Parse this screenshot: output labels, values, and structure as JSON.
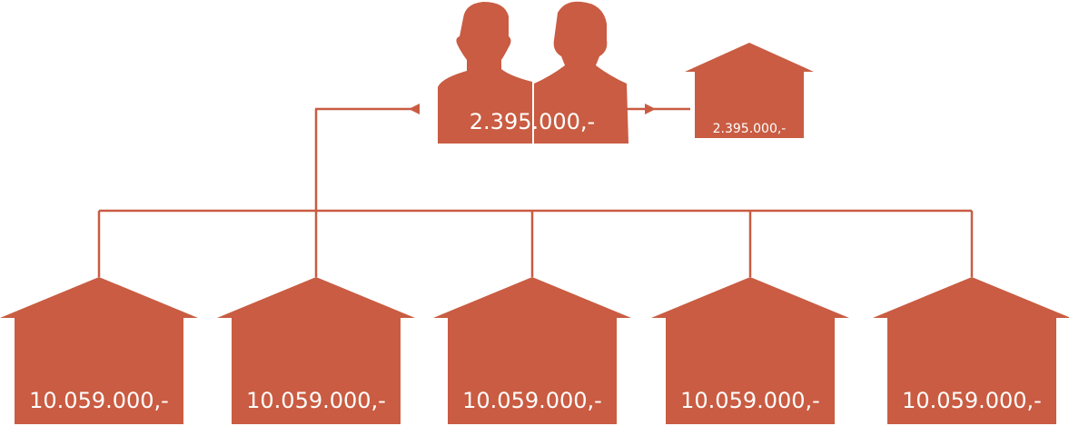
{
  "colors": {
    "accent": "#c95c42",
    "background": "#ffffff",
    "label": "#ffffff"
  },
  "couple": {
    "icon": "couple-silhouette-icon",
    "amount": "2.395.000,-"
  },
  "side_house": {
    "icon": "house-icon",
    "amount": "2.395.000,-"
  },
  "houses": [
    {
      "icon": "house-icon",
      "amount": "10.059.000,-"
    },
    {
      "icon": "house-icon",
      "amount": "10.059.000,-"
    },
    {
      "icon": "house-icon",
      "amount": "10.059.000,-"
    },
    {
      "icon": "house-icon",
      "amount": "10.059.000,-"
    },
    {
      "icon": "house-icon",
      "amount": "10.059.000,-"
    }
  ]
}
